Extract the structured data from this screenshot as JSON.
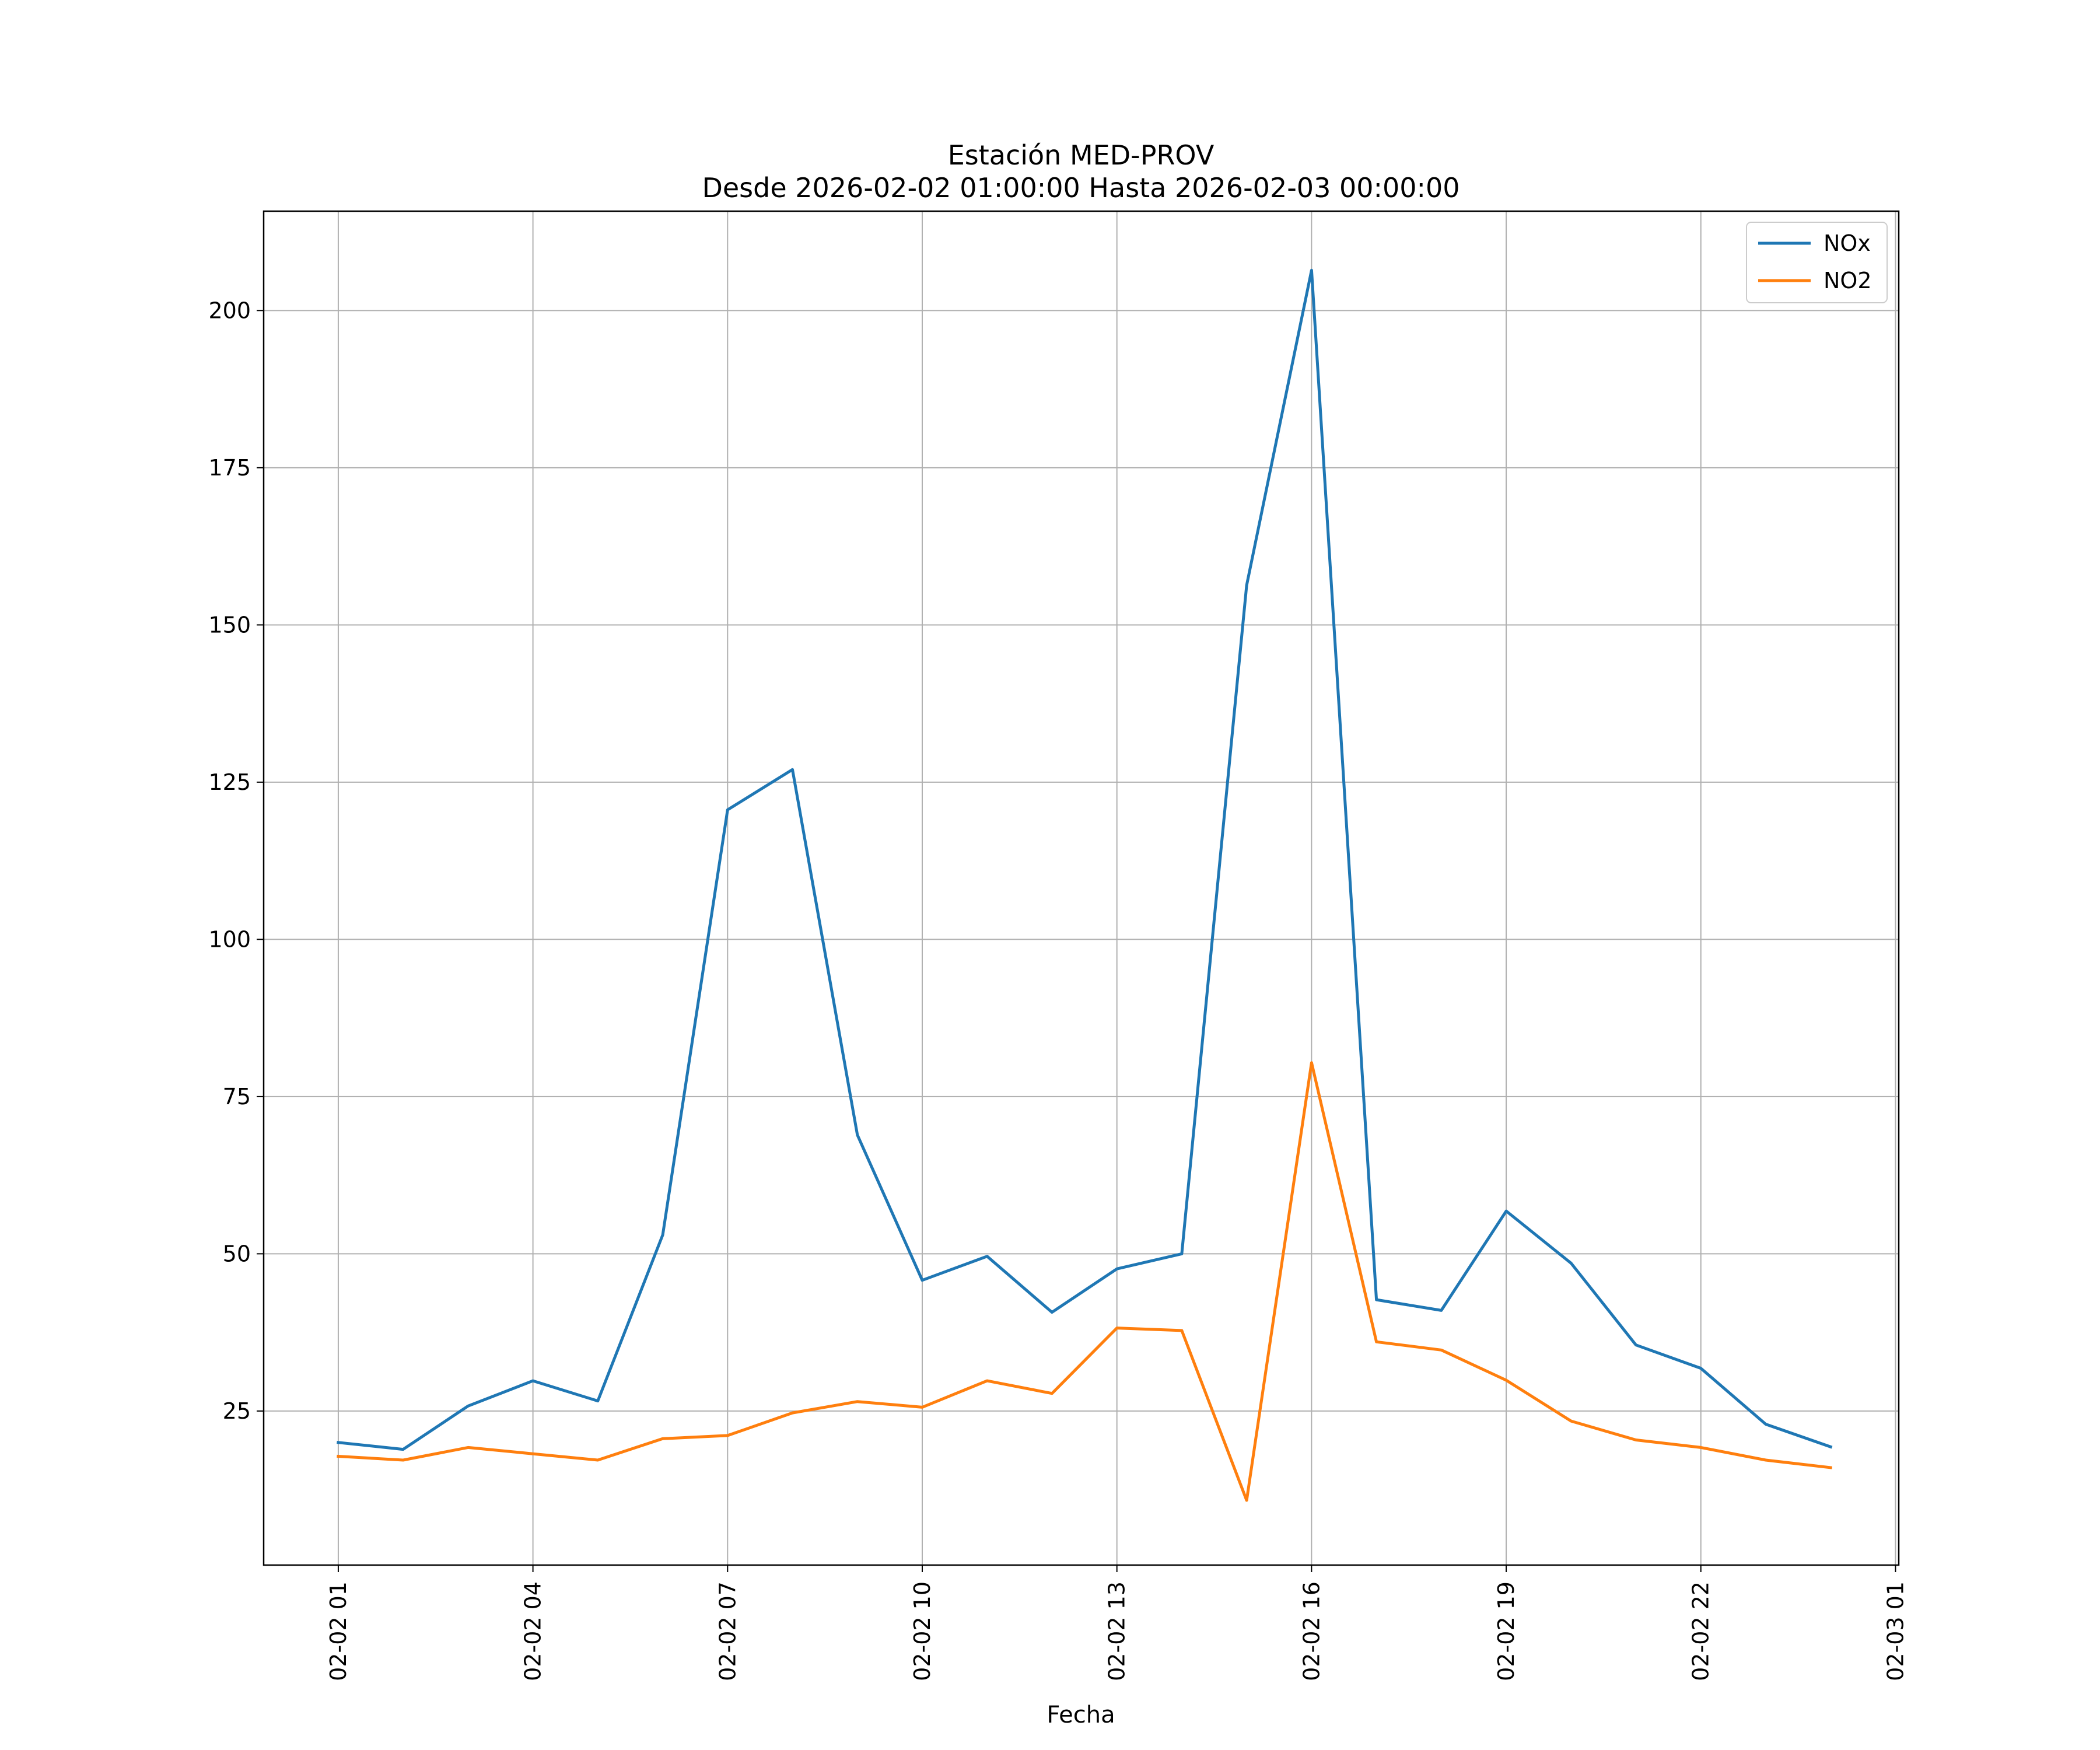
{
  "chart_data": {
    "type": "line",
    "title": "Estación MED-PROV",
    "subtitle": "Desde 2026-02-02 01:00:00 Hasta 2026-02-03 00:00:00",
    "xlabel": "Fecha",
    "ylabel": "",
    "x_unit": "hours since 2026-02-02 00:00",
    "x": [
      1,
      2,
      3,
      4,
      5,
      6,
      7,
      8,
      9,
      10,
      11,
      12,
      13,
      14,
      15,
      16,
      17,
      18,
      19,
      20,
      21,
      22,
      23,
      24
    ],
    "xlim": [
      -0.15,
      25.05
    ],
    "ylim": [
      0.5,
      215.8
    ],
    "x_ticks": [
      {
        "value": 1,
        "label": "02-02 01"
      },
      {
        "value": 4,
        "label": "02-02 04"
      },
      {
        "value": 7,
        "label": "02-02 07"
      },
      {
        "value": 10,
        "label": "02-02 10"
      },
      {
        "value": 13,
        "label": "02-02 13"
      },
      {
        "value": 16,
        "label": "02-02 16"
      },
      {
        "value": 19,
        "label": "02-02 19"
      },
      {
        "value": 22,
        "label": "02-02 22"
      },
      {
        "value": 25,
        "label": "02-03 01"
      }
    ],
    "y_ticks": [
      {
        "value": 25,
        "label": "25"
      },
      {
        "value": 50,
        "label": "50"
      },
      {
        "value": 75,
        "label": "75"
      },
      {
        "value": 100,
        "label": "100"
      },
      {
        "value": 125,
        "label": "125"
      },
      {
        "value": 150,
        "label": "150"
      },
      {
        "value": 175,
        "label": "175"
      },
      {
        "value": 200,
        "label": "200"
      }
    ],
    "grid": true,
    "legend_position": "top-right",
    "series": [
      {
        "name": "NOx",
        "color": "#1f77b4",
        "values": [
          20.0,
          18.9,
          25.8,
          29.8,
          26.6,
          53.0,
          120.6,
          127.0,
          68.9,
          45.8,
          49.6,
          40.7,
          47.6,
          50.0,
          156.3,
          206.4,
          42.7,
          41.0,
          56.8,
          48.5,
          35.5,
          31.8,
          22.9,
          19.3
        ]
      },
      {
        "name": "NO2",
        "color": "#ff7f0e",
        "values": [
          17.8,
          17.2,
          19.2,
          18.2,
          17.2,
          20.6,
          21.1,
          24.7,
          26.5,
          25.6,
          29.8,
          27.8,
          38.2,
          37.8,
          10.8,
          80.4,
          36.0,
          34.7,
          29.9,
          23.4,
          20.4,
          19.2,
          17.2,
          16.0
        ]
      }
    ]
  }
}
